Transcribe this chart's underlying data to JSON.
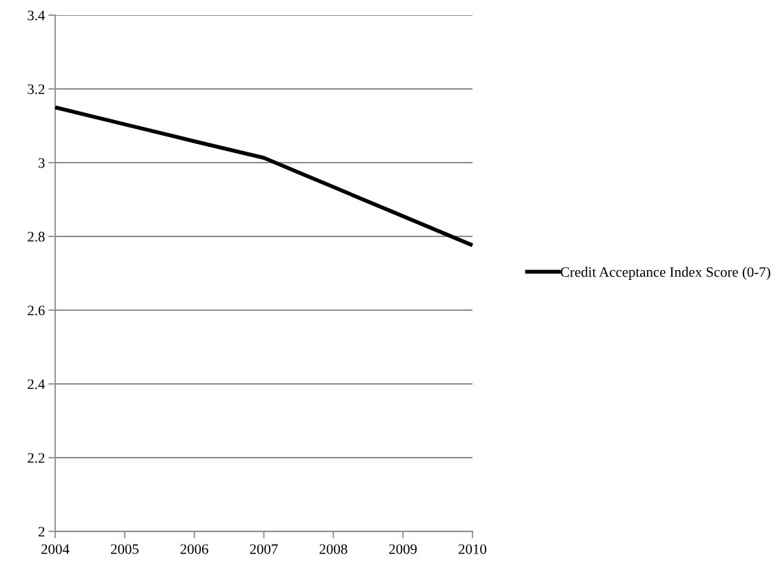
{
  "chart_data": {
    "type": "line",
    "x": [
      2004,
      2005,
      2006,
      2007,
      2008,
      2009,
      2010
    ],
    "series": [
      {
        "name": "Credit Acceptance Index Score (0-7)",
        "color": "#000000",
        "values": [
          3.15,
          3.104,
          3.058,
          3.013,
          2.934,
          2.855,
          2.776
        ]
      }
    ],
    "xlim": [
      2004,
      2010
    ],
    "xticks": [
      2004,
      2005,
      2006,
      2007,
      2008,
      2009,
      2010
    ],
    "ylim": [
      2,
      3.4
    ],
    "yticks": [
      2,
      2.2,
      2.4,
      2.6,
      2.8,
      3,
      3.2,
      3.4
    ],
    "grid": "y",
    "legend": "right",
    "marker": "none",
    "line_style": "solid"
  }
}
